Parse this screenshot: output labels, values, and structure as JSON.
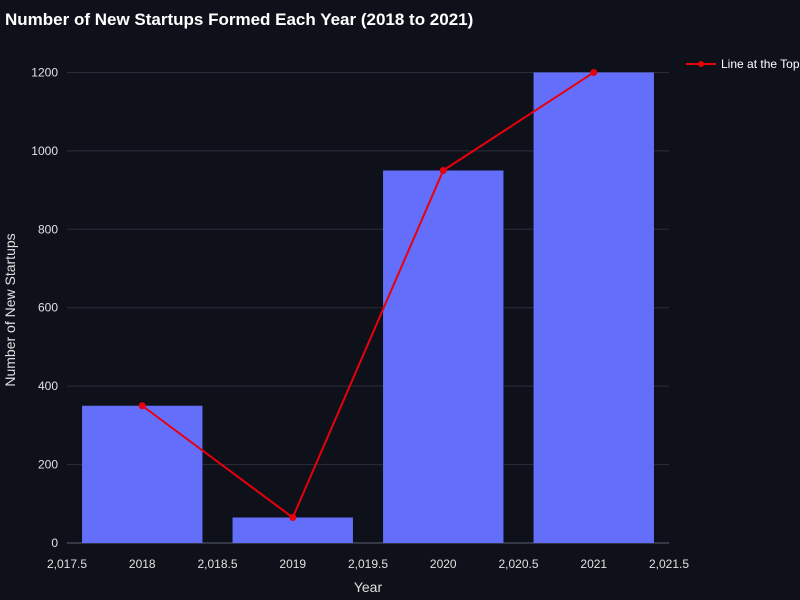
{
  "chart_data": {
    "type": "bar",
    "title": "Number of New Startups Formed Each Year (2018 to 2021)",
    "xlabel": "Year",
    "ylabel": "Number of New Startups",
    "x": [
      2018,
      2019,
      2020,
      2021
    ],
    "values": [
      350,
      65,
      950,
      1200
    ],
    "xlim": [
      2017.5,
      2021.5
    ],
    "ylim": [
      0,
      1270
    ],
    "x_ticks": [
      2017.5,
      2018,
      2018.5,
      2019,
      2019.5,
      2020,
      2020.5,
      2021,
      2021.5
    ],
    "x_tick_labels": [
      "2,017.5",
      "2018",
      "2,018.5",
      "2019",
      "2,019.5",
      "2020",
      "2,020.5",
      "2021",
      "2,021.5"
    ],
    "y_ticks": [
      0,
      200,
      400,
      600,
      800,
      1000,
      1200
    ],
    "y_tick_labels": [
      "0",
      "200",
      "400",
      "600",
      "800",
      "1000",
      "1200"
    ],
    "bar_color": "#636efa",
    "line_series": {
      "name": "Line at the Top",
      "x": [
        2018,
        2019,
        2020,
        2021
      ],
      "y": [
        350,
        65,
        950,
        1200
      ],
      "color": "#e8000b"
    },
    "grid": true,
    "legend_position": "top-right",
    "background": "#0f111a"
  }
}
